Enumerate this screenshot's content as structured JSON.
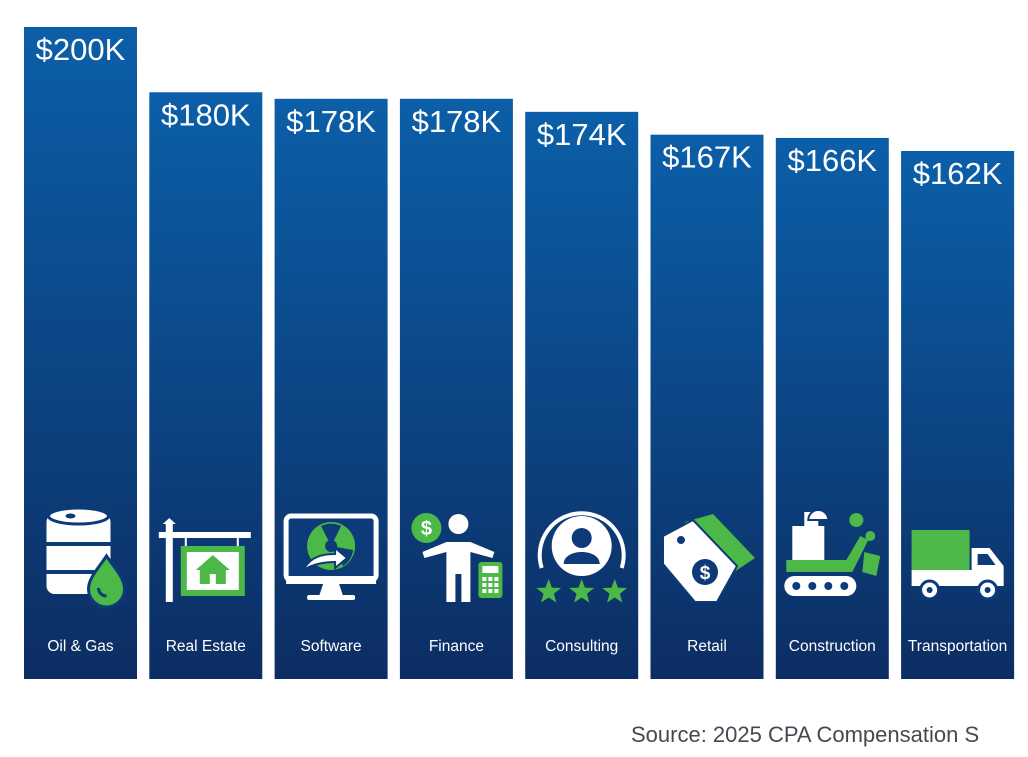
{
  "chart_data": {
    "type": "bar",
    "categories": [
      "Oil & Gas",
      "Real Estate",
      "Software",
      "Finance",
      "Consulting",
      "Retail",
      "Construction",
      "Transportation"
    ],
    "values": [
      200,
      180,
      178,
      178,
      174,
      167,
      166,
      162
    ],
    "value_labels": [
      "$200K",
      "$180K",
      "$178K",
      "$178K",
      "$174K",
      "$167K",
      "$166K",
      "$162K"
    ],
    "icons": [
      "oil-barrel-icon",
      "real-estate-sign-icon",
      "software-monitor-icon",
      "finance-person-icon",
      "consulting-rating-icon",
      "retail-price-tag-icon",
      "construction-excavator-icon",
      "transportation-truck-icon"
    ],
    "ylim": [
      0,
      200
    ],
    "grid": false,
    "colors": {
      "bar_top": "#0b5fa8",
      "bar_bottom": "#0c2d63",
      "accent": "#4cb848",
      "text": "#ffffff"
    }
  },
  "source": "Source: 2025 CPA Compensation S"
}
